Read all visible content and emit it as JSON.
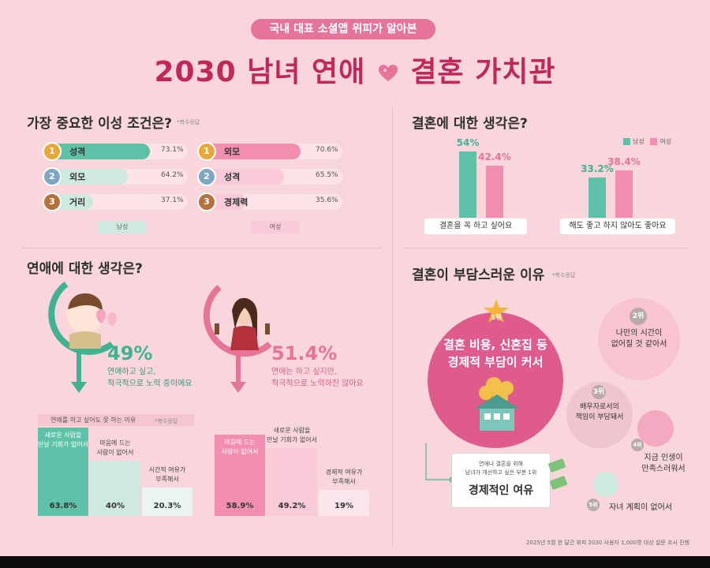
{
  "header": {
    "pill": "국내 대표 소셜앱 위피가 알아본",
    "title_left": "2030 남녀 연애",
    "title_right": "결혼 가치관"
  },
  "partner_conditions": {
    "title": "가장 중요한 이성 조건은?",
    "note": "*복수응답",
    "male_tag": "남성",
    "female_tag": "여성",
    "male": [
      {
        "rank": "1",
        "label": "성격",
        "pct_text": "73.1%",
        "value": 73.1
      },
      {
        "rank": "2",
        "label": "외모",
        "pct_text": "64.2%",
        "value": 64.2
      },
      {
        "rank": "3",
        "label": "거리",
        "pct_text": "37.1%",
        "value": 37.1
      }
    ],
    "female": [
      {
        "rank": "1",
        "label": "외모",
        "pct_text": "70.6%",
        "value": 70.6
      },
      {
        "rank": "2",
        "label": "성격",
        "pct_text": "65.5%",
        "value": 65.5
      },
      {
        "rank": "3",
        "label": "경제력",
        "pct_text": "35.6%",
        "value": 35.6
      }
    ],
    "colors": {
      "male": "#5ec2a9",
      "male_light": "#cde9e0",
      "female": "#f28fb1",
      "female_light": "#f9cbd8"
    }
  },
  "marriage_thoughts": {
    "title": "결혼에 대한 생각은?",
    "legend_male": "남성",
    "legend_female": "여성",
    "groups": [
      {
        "label": "결혼을 꼭 하고 싶어요",
        "male_text": "54%",
        "female_text": "42.4%",
        "male": 54,
        "female": 42.4
      },
      {
        "label": "해도 좋고 하지 않아도 좋아요",
        "male_text": "33.2%",
        "female_text": "38.4%",
        "male": 33.2,
        "female": 38.4
      }
    ]
  },
  "dating_thoughts": {
    "title": "연애에 대한 생각은?",
    "male_pct": "49%",
    "male_desc_1": "연애하고 싶고,",
    "male_desc_2": "적극적으로 노력 중이에요",
    "female_pct": "51.4%",
    "female_desc_1": "연애는 하고 싶지만,",
    "female_desc_2": "적극적으로 노력하진 않아요",
    "reason_head": "연애를 하고 싶어도 못 하는 이유",
    "reason_note": "*복수응답",
    "male_reasons": [
      {
        "label_1": "새로운 사람을",
        "label_2": "만날 기회가 없어서",
        "pct": "63.8%",
        "value": 63.8
      },
      {
        "label_1": "마음에 드는",
        "label_2": "사람이 없어서",
        "pct": "40%",
        "value": 40
      },
      {
        "label_1": "시간적 여유가",
        "label_2": "부족해서",
        "pct": "20.3%",
        "value": 20.3
      }
    ],
    "female_reasons": [
      {
        "label_1": "마음에 드는",
        "label_2": "사람이 없어서",
        "pct": "58.9%",
        "value": 58.9
      },
      {
        "label_1": "새로운 사람을",
        "label_2": "만날 기회가 없어서",
        "pct": "49.2%",
        "value": 49.2
      },
      {
        "label_1": "경제적 여유가",
        "label_2": "부족해서",
        "pct": "19%",
        "value": 19
      }
    ]
  },
  "marriage_burden": {
    "title": "결혼이 부담스러운 이유",
    "note": "*복수응답",
    "rank1_badge": "1위",
    "rank1_line1": "결혼 비용, 신혼집 등",
    "rank1_line2": "경제적 부담이 커서",
    "rank2_badge": "2위",
    "rank2_line1": "나만의 시간이",
    "rank2_line2": "없어질 것 같아서",
    "rank3_badge": "3위",
    "rank3_line1": "배우자로서의",
    "rank3_line2": "책임이 부담돼서",
    "rank4_badge": "4위",
    "rank4_line1": "지금 인생이",
    "rank4_line2": "만족스러워서",
    "rank5_badge": "5위",
    "rank5_line1": "자녀 계획이 없어서",
    "improve_line1": "연애나 결혼을 위해",
    "improve_line2": "남녀가 개선하고 싶은 부분 1위",
    "improve_main": "경제적인 여유"
  },
  "footer": "2025년 5월 한 달간 위피 2030 사용자 1,000명 대상 설문 조사 진행"
}
